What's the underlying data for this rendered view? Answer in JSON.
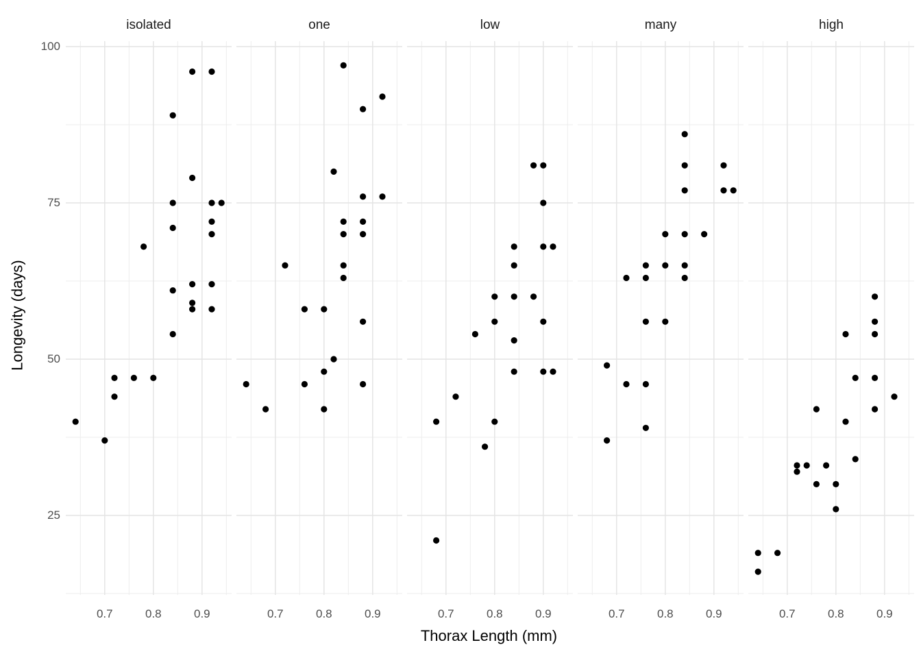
{
  "chart_data": {
    "type": "scatter",
    "title": "",
    "xlabel": "Thorax Length (mm)",
    "ylabel": "Longevity (days)",
    "x_ticks": [
      0.7,
      0.8,
      0.9
    ],
    "x_tick_labels": [
      "0.7",
      "0.8",
      "0.9"
    ],
    "x_minor": [
      0.65,
      0.75,
      0.85,
      0.95
    ],
    "y_ticks": [
      100,
      75,
      50,
      25
    ],
    "y_tick_labels": [
      "100",
      "75",
      "50",
      "25"
    ],
    "y_minor": [
      12.5,
      37.5,
      62.5,
      87.5
    ],
    "x_domain": [
      0.62,
      0.9608
    ],
    "y_domain": [
      12.28,
      100.88
    ],
    "grid": true,
    "legend": "none",
    "point_color": "#000000",
    "background_color": "#FFFFFF",
    "grid_major_color": "#E4E4E4",
    "grid_minor_color": "#EDEDED",
    "tick_text_color": "#4D4D4D",
    "strip_text_color": "#1A1A1A",
    "facets": [
      {
        "label": "isolated",
        "points": [
          [
            0.64,
            40
          ],
          [
            0.7,
            37
          ],
          [
            0.72,
            44
          ],
          [
            0.72,
            47
          ],
          [
            0.76,
            47
          ],
          [
            0.78,
            68
          ],
          [
            0.8,
            47
          ],
          [
            0.84,
            54
          ],
          [
            0.84,
            61
          ],
          [
            0.84,
            71
          ],
          [
            0.84,
            75
          ],
          [
            0.84,
            89
          ],
          [
            0.88,
            58
          ],
          [
            0.88,
            59
          ],
          [
            0.88,
            62
          ],
          [
            0.88,
            79
          ],
          [
            0.88,
            96
          ],
          [
            0.92,
            58
          ],
          [
            0.92,
            62
          ],
          [
            0.92,
            70
          ],
          [
            0.92,
            72
          ],
          [
            0.92,
            75
          ],
          [
            0.92,
            96
          ],
          [
            0.94,
            75
          ]
        ]
      },
      {
        "label": "one",
        "points": [
          [
            0.64,
            46
          ],
          [
            0.68,
            42
          ],
          [
            0.72,
            65
          ],
          [
            0.76,
            46
          ],
          [
            0.76,
            58
          ],
          [
            0.8,
            42
          ],
          [
            0.8,
            48
          ],
          [
            0.8,
            58
          ],
          [
            0.82,
            50
          ],
          [
            0.82,
            80
          ],
          [
            0.84,
            63
          ],
          [
            0.84,
            65
          ],
          [
            0.84,
            70
          ],
          [
            0.84,
            72
          ],
          [
            0.84,
            97
          ],
          [
            0.88,
            46
          ],
          [
            0.88,
            56
          ],
          [
            0.88,
            70
          ],
          [
            0.88,
            72
          ],
          [
            0.88,
            76
          ],
          [
            0.88,
            90
          ],
          [
            0.92,
            76
          ],
          [
            0.92,
            92
          ]
        ]
      },
      {
        "label": "low",
        "points": [
          [
            0.68,
            21
          ],
          [
            0.68,
            40
          ],
          [
            0.72,
            44
          ],
          [
            0.76,
            54
          ],
          [
            0.78,
            36
          ],
          [
            0.8,
            40
          ],
          [
            0.8,
            56
          ],
          [
            0.8,
            60
          ],
          [
            0.84,
            48
          ],
          [
            0.84,
            53
          ],
          [
            0.84,
            60
          ],
          [
            0.84,
            65
          ],
          [
            0.84,
            68
          ],
          [
            0.88,
            60
          ],
          [
            0.88,
            81
          ],
          [
            0.9,
            48
          ],
          [
            0.9,
            56
          ],
          [
            0.9,
            68
          ],
          [
            0.9,
            75
          ],
          [
            0.9,
            81
          ],
          [
            0.92,
            48
          ],
          [
            0.92,
            68
          ]
        ]
      },
      {
        "label": "many",
        "points": [
          [
            0.68,
            37
          ],
          [
            0.68,
            49
          ],
          [
            0.72,
            46
          ],
          [
            0.72,
            63
          ],
          [
            0.76,
            39
          ],
          [
            0.76,
            46
          ],
          [
            0.76,
            56
          ],
          [
            0.76,
            63
          ],
          [
            0.76,
            65
          ],
          [
            0.8,
            56
          ],
          [
            0.8,
            65
          ],
          [
            0.8,
            70
          ],
          [
            0.84,
            63
          ],
          [
            0.84,
            65
          ],
          [
            0.84,
            70
          ],
          [
            0.84,
            77
          ],
          [
            0.84,
            81
          ],
          [
            0.84,
            86
          ],
          [
            0.88,
            70
          ],
          [
            0.92,
            77
          ],
          [
            0.92,
            81
          ],
          [
            0.94,
            77
          ]
        ]
      },
      {
        "label": "high",
        "points": [
          [
            0.64,
            16
          ],
          [
            0.64,
            19
          ],
          [
            0.68,
            19
          ],
          [
            0.72,
            32
          ],
          [
            0.72,
            33
          ],
          [
            0.74,
            33
          ],
          [
            0.76,
            30
          ],
          [
            0.76,
            42
          ],
          [
            0.78,
            33
          ],
          [
            0.8,
            26
          ],
          [
            0.8,
            30
          ],
          [
            0.82,
            40
          ],
          [
            0.82,
            54
          ],
          [
            0.84,
            34
          ],
          [
            0.84,
            47
          ],
          [
            0.88,
            42
          ],
          [
            0.88,
            47
          ],
          [
            0.88,
            54
          ],
          [
            0.88,
            56
          ],
          [
            0.88,
            60
          ],
          [
            0.92,
            44
          ]
        ]
      }
    ]
  }
}
